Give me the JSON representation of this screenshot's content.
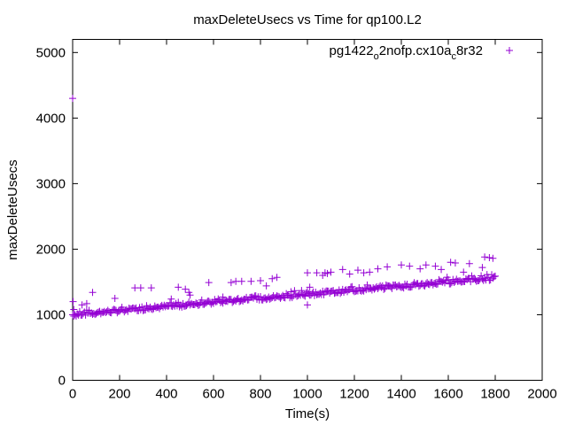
{
  "chart_data": {
    "type": "scatter",
    "title": "maxDeleteUsecs vs Time for qp100.L2",
    "xlabel": "Time(s)",
    "ylabel": "maxDeleteUsecs",
    "xlim": [
      0,
      2000
    ],
    "ylim": [
      0,
      5200
    ],
    "xticks": [
      0,
      200,
      400,
      600,
      800,
      1000,
      1200,
      1400,
      1600,
      1800,
      2000
    ],
    "yticks": [
      0,
      1000,
      2000,
      3000,
      4000,
      5000
    ],
    "xtick_labels": [
      "0",
      "200",
      "400",
      "600",
      "800",
      "1000",
      "1200",
      "1400",
      "1600",
      "1800",
      "2000"
    ],
    "ytick_labels": [
      "0",
      "1000",
      "2000",
      "3000",
      "4000",
      "5000"
    ],
    "grid": false,
    "legend_position": "top-right",
    "marker": "plus",
    "color": "#9400d3",
    "series": [
      {
        "name_main": "pg1422",
        "name_sub1": "o",
        "name_mid": "2nofp.cx10a",
        "name_sub2": "c",
        "name_end": "8r32",
        "trend": {
          "x_start": 0,
          "y_start": 1000,
          "x_end": 1800,
          "y_end": 1560,
          "spacing_s": 5
        },
        "outliers": [
          [
            0,
            4300
          ],
          [
            2,
            1200
          ],
          [
            5,
            1080
          ],
          [
            40,
            1150
          ],
          [
            60,
            1170
          ],
          [
            85,
            1340
          ],
          [
            180,
            1250
          ],
          [
            265,
            1410
          ],
          [
            290,
            1410
          ],
          [
            335,
            1410
          ],
          [
            420,
            1240
          ],
          [
            450,
            1420
          ],
          [
            480,
            1390
          ],
          [
            495,
            1340
          ],
          [
            500,
            1300
          ],
          [
            580,
            1490
          ],
          [
            640,
            1270
          ],
          [
            675,
            1490
          ],
          [
            695,
            1510
          ],
          [
            720,
            1510
          ],
          [
            760,
            1510
          ],
          [
            800,
            1520
          ],
          [
            825,
            1440
          ],
          [
            850,
            1550
          ],
          [
            870,
            1570
          ],
          [
            930,
            1350
          ],
          [
            1000,
            1150
          ],
          [
            1000,
            1640
          ],
          [
            1010,
            1420
          ],
          [
            1040,
            1640
          ],
          [
            1065,
            1600
          ],
          [
            1075,
            1640
          ],
          [
            1085,
            1630
          ],
          [
            1100,
            1650
          ],
          [
            1150,
            1690
          ],
          [
            1180,
            1620
          ],
          [
            1215,
            1680
          ],
          [
            1240,
            1640
          ],
          [
            1265,
            1650
          ],
          [
            1300,
            1700
          ],
          [
            1340,
            1730
          ],
          [
            1400,
            1760
          ],
          [
            1435,
            1740
          ],
          [
            1480,
            1700
          ],
          [
            1505,
            1760
          ],
          [
            1545,
            1740
          ],
          [
            1570,
            1690
          ],
          [
            1610,
            1800
          ],
          [
            1630,
            1790
          ],
          [
            1665,
            1650
          ],
          [
            1690,
            1780
          ],
          [
            1745,
            1720
          ],
          [
            1755,
            1880
          ],
          [
            1775,
            1870
          ],
          [
            1790,
            1860
          ]
        ]
      }
    ]
  }
}
